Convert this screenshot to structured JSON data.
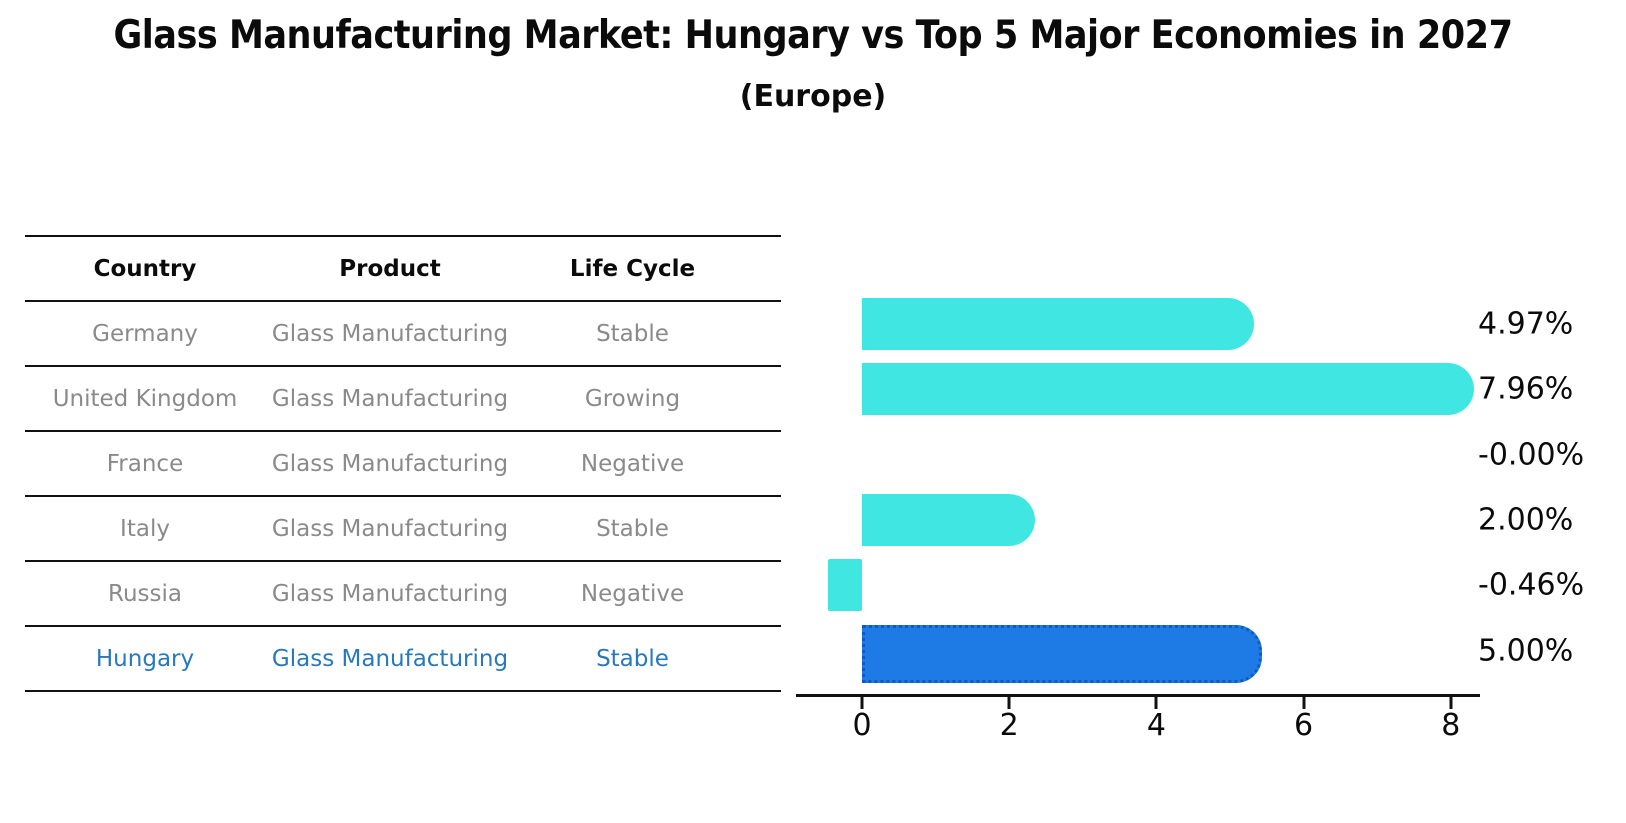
{
  "title": "Glass Manufacturing Market: Hungary vs Top 5 Major Economies in 2027",
  "subtitle": "(Europe)",
  "table": {
    "headers": [
      "Country",
      "Product",
      "Life Cycle"
    ],
    "rows": [
      {
        "country": "Germany",
        "product": "Glass Manufacturing",
        "life_cycle": "Stable",
        "highlight": false
      },
      {
        "country": "United Kingdom",
        "product": "Glass Manufacturing",
        "life_cycle": "Growing",
        "highlight": false
      },
      {
        "country": "France",
        "product": "Glass Manufacturing",
        "life_cycle": "Negative",
        "highlight": false
      },
      {
        "country": "Italy",
        "product": "Glass Manufacturing",
        "life_cycle": "Stable",
        "highlight": false
      },
      {
        "country": "Russia",
        "product": "Glass Manufacturing",
        "life_cycle": "Negative",
        "highlight": false
      },
      {
        "country": "Hungary",
        "product": "Glass Manufacturing",
        "life_cycle": "Stable",
        "highlight": true
      }
    ]
  },
  "chart_data": {
    "type": "bar",
    "orientation": "horizontal",
    "categories": [
      "Germany",
      "United Kingdom",
      "France",
      "Italy",
      "Russia",
      "Hungary"
    ],
    "values": [
      4.97,
      7.96,
      -0.0,
      2.0,
      -0.46,
      5.0
    ],
    "value_labels": [
      "4.97%",
      "7.96%",
      "-0.00%",
      "2.00%",
      "-0.46%",
      "5.00%"
    ],
    "x_ticks": [
      0,
      2,
      4,
      6,
      8
    ],
    "xlim": [
      -0.9,
      8.4
    ],
    "grid": false,
    "legend": "none",
    "highlight_category": "Hungary",
    "colors": {
      "bar": "#40E7E2",
      "highlight_bar": "#1E7BE5",
      "highlight_border": "#1059C2",
      "axis": "#111111",
      "label_text": "#0b0b0b",
      "table_text": "#8a8a8a",
      "highlight_text": "#2878be"
    }
  }
}
